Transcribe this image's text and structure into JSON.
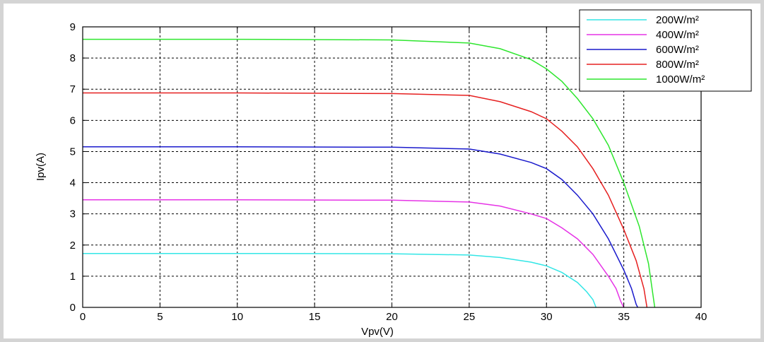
{
  "chart_data": {
    "type": "line",
    "title": "",
    "xlabel": "Vpv(V)",
    "ylabel": "Ipv(A)",
    "xlim": [
      0,
      40
    ],
    "ylim": [
      0,
      9
    ],
    "xticks": [
      0,
      5,
      10,
      15,
      20,
      25,
      30,
      35,
      40
    ],
    "yticks": [
      0,
      1,
      2,
      3,
      4,
      5,
      6,
      7,
      8,
      9
    ],
    "x_tick_labels": [
      "0",
      "5",
      "10",
      "15",
      "20",
      "25",
      "30",
      "35",
      "40"
    ],
    "y_tick_labels": [
      "0",
      "1",
      "2",
      "3",
      "4",
      "5",
      "6",
      "7",
      "8",
      "9"
    ],
    "grid": true,
    "legend_position": "top-right",
    "series": [
      {
        "name": "200W/m²",
        "color": "#33e6e6",
        "points": [
          [
            0,
            1.73
          ],
          [
            10,
            1.73
          ],
          [
            20,
            1.72
          ],
          [
            25,
            1.68
          ],
          [
            27,
            1.6
          ],
          [
            29,
            1.45
          ],
          [
            30,
            1.33
          ],
          [
            31,
            1.12
          ],
          [
            32,
            0.8
          ],
          [
            32.6,
            0.5
          ],
          [
            33,
            0.25
          ],
          [
            33.2,
            0
          ]
        ]
      },
      {
        "name": "400W/m²",
        "color": "#e633e6",
        "points": [
          [
            0,
            3.45
          ],
          [
            10,
            3.45
          ],
          [
            20,
            3.44
          ],
          [
            25,
            3.38
          ],
          [
            27,
            3.25
          ],
          [
            29,
            3.0
          ],
          [
            30,
            2.85
          ],
          [
            31,
            2.55
          ],
          [
            32,
            2.2
          ],
          [
            33,
            1.7
          ],
          [
            34,
            1.0
          ],
          [
            34.5,
            0.6
          ],
          [
            34.8,
            0.2
          ],
          [
            35,
            0
          ]
        ]
      },
      {
        "name": "600W/m²",
        "color": "#1a1acc",
        "points": [
          [
            0,
            5.15
          ],
          [
            10,
            5.15
          ],
          [
            20,
            5.14
          ],
          [
            25,
            5.08
          ],
          [
            27,
            4.92
          ],
          [
            29,
            4.65
          ],
          [
            30,
            4.45
          ],
          [
            31,
            4.1
          ],
          [
            32,
            3.6
          ],
          [
            33,
            3.0
          ],
          [
            34,
            2.2
          ],
          [
            35,
            1.2
          ],
          [
            35.5,
            0.6
          ],
          [
            35.8,
            0.1
          ],
          [
            35.9,
            0
          ]
        ]
      },
      {
        "name": "800W/m²",
        "color": "#e62020",
        "points": [
          [
            0,
            6.88
          ],
          [
            10,
            6.88
          ],
          [
            20,
            6.86
          ],
          [
            25,
            6.8
          ],
          [
            27,
            6.6
          ],
          [
            29,
            6.28
          ],
          [
            30,
            6.05
          ],
          [
            31,
            5.65
          ],
          [
            32,
            5.15
          ],
          [
            33,
            4.45
          ],
          [
            34,
            3.6
          ],
          [
            35,
            2.5
          ],
          [
            35.8,
            1.5
          ],
          [
            36.3,
            0.6
          ],
          [
            36.5,
            0
          ]
        ]
      },
      {
        "name": "1000W/m²",
        "color": "#2ee62e",
        "points": [
          [
            0,
            8.6
          ],
          [
            10,
            8.6
          ],
          [
            20,
            8.58
          ],
          [
            25,
            8.48
          ],
          [
            27,
            8.3
          ],
          [
            29,
            7.95
          ],
          [
            30,
            7.65
          ],
          [
            31,
            7.25
          ],
          [
            32,
            6.7
          ],
          [
            33,
            6.05
          ],
          [
            34,
            5.2
          ],
          [
            35,
            4.0
          ],
          [
            36,
            2.6
          ],
          [
            36.6,
            1.4
          ],
          [
            37,
            0
          ]
        ]
      }
    ]
  }
}
